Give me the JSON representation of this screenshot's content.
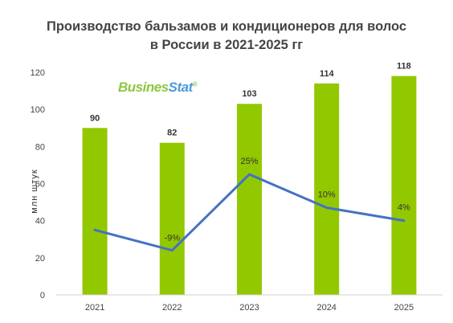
{
  "chart_data": {
    "type": "bar",
    "title_line1": "Производство бальзамов и кондиционеров для волос",
    "title_line2": "в России в 2021-2025 гг",
    "ylabel": "млн штук",
    "xlabel": "",
    "ylim": [
      0,
      120
    ],
    "yticks": [
      0,
      20,
      40,
      60,
      80,
      100,
      120
    ],
    "categories": [
      "2021",
      "2022",
      "2023",
      "2024",
      "2025"
    ],
    "values": [
      90,
      82,
      103,
      114,
      118
    ],
    "value_labels": [
      "90",
      "82",
      "103",
      "114",
      "118"
    ],
    "growth_line": {
      "points": [
        35,
        24,
        65,
        47,
        40
      ],
      "labels": [
        "",
        "-9%",
        "25%",
        "10%",
        "4%"
      ]
    },
    "grid": false,
    "legend": "none"
  },
  "logo": {
    "part1": "Busines",
    "part2": "Stat",
    "mark": "®"
  },
  "colors": {
    "bar": "#92c800",
    "line": "#4472c4",
    "axis": "#d0d0d0"
  }
}
